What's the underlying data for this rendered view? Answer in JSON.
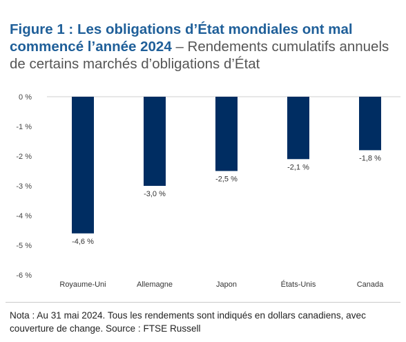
{
  "title": {
    "lead": "Figure 1 : Les obligations d’État mondiales ont mal commencé l’année 2024",
    "rest": "– Rendements cumulatifs annuels de certains marchés d’obligations d’État"
  },
  "note": "Nota : Au 31 mai 2024. Tous les rendements sont indiqués en dollars canadiens, avec couverture de change. Source : FTSE Russell",
  "colors": {
    "bar": "#002d62",
    "title_accent": "#1f5f99"
  },
  "chart_data": {
    "type": "bar",
    "categories": [
      "Royaume-Uni",
      "Allemagne",
      "Japon",
      "États-Unis",
      "Canada"
    ],
    "values": [
      -4.6,
      -3.0,
      -2.5,
      -2.1,
      -1.8
    ],
    "data_labels": [
      "-4,6 %",
      "-3,0 %",
      "-2,5 %",
      "-2,1 %",
      "-1,8 %"
    ],
    "y_ticks": [
      0,
      -1,
      -2,
      -3,
      -4,
      -5,
      -6
    ],
    "y_tick_labels": [
      "0 %",
      "-1 %",
      "-2 %",
      "-3 %",
      "-4 %",
      "-5 %",
      "-6 %"
    ],
    "ylim": [
      -6,
      0
    ],
    "grid": false,
    "legend": "none",
    "xlabel": "",
    "ylabel": ""
  }
}
